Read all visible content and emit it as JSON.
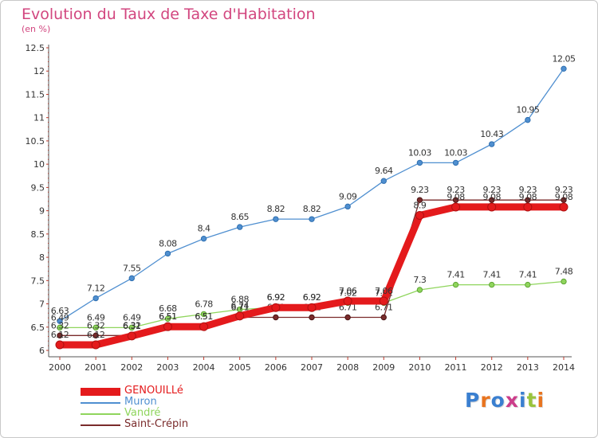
{
  "title": "Evolution du Taux de Taxe d'Habitation",
  "subtitle": "(en %)",
  "logo": {
    "text": "Proxiti",
    "colors": [
      "#3a7fd0",
      "#e8741f",
      "#3a7fd0",
      "#cc3d8a",
      "#3a7fd0",
      "#9ac43c",
      "#e8741f"
    ]
  },
  "chart_data": {
    "type": "line",
    "x": [
      "2000",
      "2001",
      "2002",
      "2003",
      "2004",
      "2005",
      "2006",
      "2007",
      "2008",
      "2009",
      "2010",
      "2011",
      "2012",
      "2013",
      "2014"
    ],
    "ylim": [
      6,
      12.5
    ],
    "yticks": [
      "6",
      "6.5",
      "7",
      "7.5",
      "8",
      "8.5",
      "9",
      "9.5",
      "10",
      "10.5",
      "11",
      "11.5",
      "12",
      "12.5"
    ],
    "grid": false,
    "legend_position": "bottom-left",
    "series": [
      {
        "name": "GENOUILLé",
        "color": "#e41a1c",
        "values": [
          6.12,
          6.12,
          6.31,
          6.51,
          6.51,
          6.74,
          6.92,
          6.92,
          7.06,
          7.06,
          8.9,
          9.08,
          9.08,
          9.08,
          9.08
        ],
        "labels": [
          "6.12",
          "6.12",
          "6.31",
          "6.51",
          "6.51",
          "6.74",
          "6.92",
          "6.92",
          "7.06",
          "7.06",
          "8.9",
          "9.08",
          "9.08",
          "9.08",
          "9.08"
        ]
      },
      {
        "name": "Muron",
        "color": "#4f8fd0",
        "values": [
          6.63,
          7.12,
          7.55,
          8.08,
          8.4,
          8.65,
          8.82,
          8.82,
          9.09,
          9.64,
          10.03,
          10.03,
          10.43,
          10.95,
          12.05
        ],
        "labels": [
          "6.63",
          "7.12",
          "7.55",
          "8.08",
          "8.4",
          "8.65",
          "8.82",
          "8.82",
          "9.09",
          "9.64",
          "10.03",
          "10.03",
          "10.43",
          "10.95",
          "12.05"
        ]
      },
      {
        "name": "Vandré",
        "color": "#8fd55c",
        "values": [
          6.49,
          6.49,
          6.49,
          6.68,
          6.78,
          6.88,
          6.92,
          6.92,
          7.02,
          7.02,
          7.3,
          7.41,
          7.41,
          7.41,
          7.48
        ],
        "labels": [
          "6.49",
          "6.49",
          "6.49",
          "6.68",
          "6.78",
          "6.88",
          "6.92",
          "6.92",
          "7.02",
          "7.02",
          "7.3",
          "7.41",
          "7.41",
          "7.41",
          "7.48"
        ]
      },
      {
        "name": "Saint-Crépin",
        "color": "#7a2b2b",
        "values": [
          6.32,
          6.32,
          6.32,
          6.51,
          6.51,
          6.71,
          6.71,
          6.71,
          6.71,
          6.71,
          9.23,
          9.23,
          9.23,
          9.23,
          9.23
        ],
        "labels": [
          "6.32",
          "6.32",
          "6.32",
          "6.51",
          "6.51",
          "6.71",
          "6.71",
          "6.71",
          "6.71",
          "6.71",
          "9.23",
          "9.23",
          "9.23",
          "9.23",
          "9.23"
        ]
      }
    ]
  }
}
